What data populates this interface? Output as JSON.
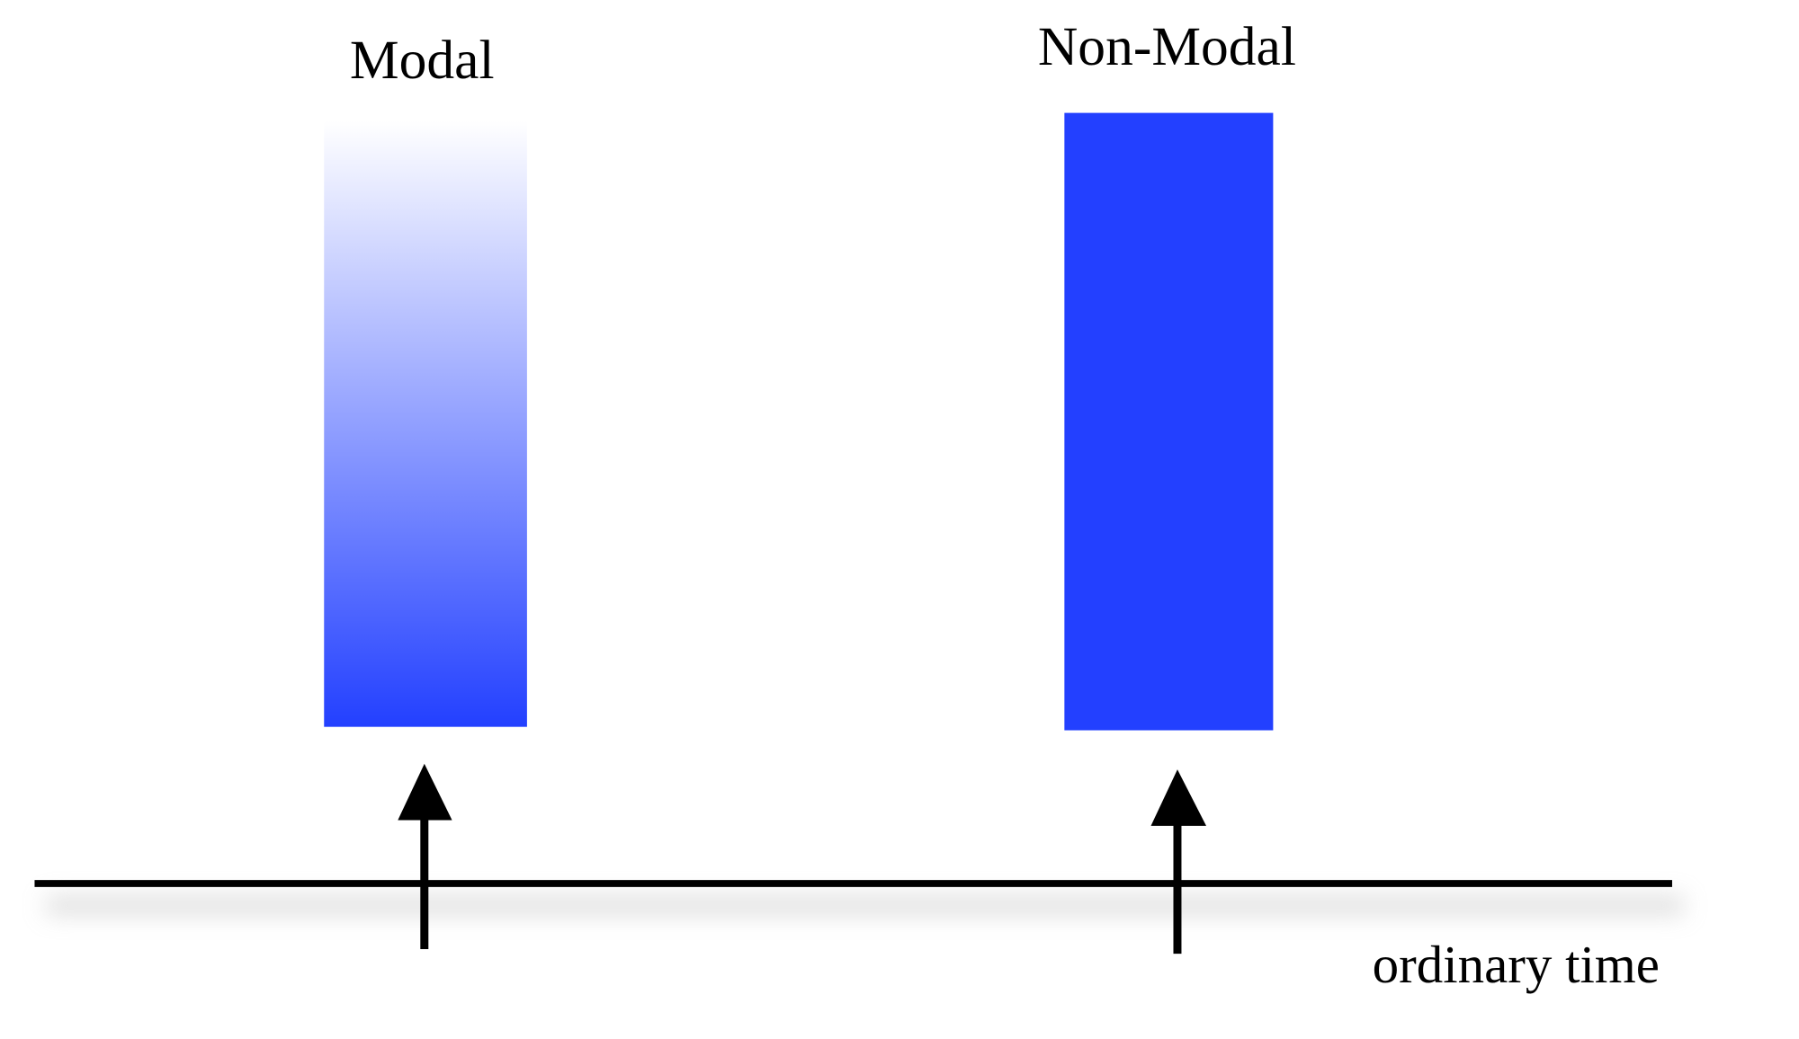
{
  "labels": {
    "modal": "Modal",
    "non_modal": "Non-Modal",
    "axis": "ordinary time"
  },
  "colors": {
    "bar_blue": "#2340ff",
    "axis": "#000000"
  },
  "bars": [
    {
      "name": "modal",
      "fill": "gradient white-to-blue, top to bottom"
    },
    {
      "name": "non-modal",
      "fill": "solid blue"
    }
  ],
  "icons": [
    "up-arrow-icon",
    "up-arrow-icon"
  ]
}
